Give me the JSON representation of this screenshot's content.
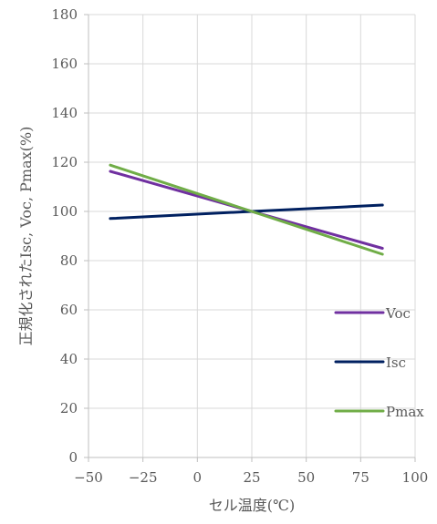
{
  "chart_data": {
    "type": "line",
    "title": "",
    "xlabel": "セル温度(℃)",
    "ylabel": "正規化されたIsc, Voc, Pmax(%)",
    "xlim": [
      -50,
      100
    ],
    "ylim": [
      0,
      180
    ],
    "xticks": [
      -50,
      -25,
      0,
      25,
      50,
      75,
      100
    ],
    "yticks": [
      0,
      20,
      40,
      60,
      80,
      100,
      120,
      140,
      160,
      180
    ],
    "xtick_labels": [
      "−50",
      "−25",
      "0",
      "25",
      "50",
      "75",
      "100"
    ],
    "ytick_labels": [
      "0",
      "20",
      "40",
      "60",
      "80",
      "100",
      "120",
      "140",
      "160",
      "180"
    ],
    "grid": true,
    "legend_position": "right",
    "series": [
      {
        "name": "Voc",
        "color": "#7030A0",
        "x": [
          -40,
          25,
          85
        ],
        "y": [
          116.3,
          100,
          85
        ]
      },
      {
        "name": "Isc",
        "color": "#002060",
        "x": [
          -40,
          25,
          85
        ],
        "y": [
          97.1,
          100,
          102.6
        ]
      },
      {
        "name": "Pmax",
        "color": "#70AD47",
        "x": [
          -40,
          25,
          85
        ],
        "y": [
          118.8,
          100,
          82.6
        ]
      }
    ]
  }
}
